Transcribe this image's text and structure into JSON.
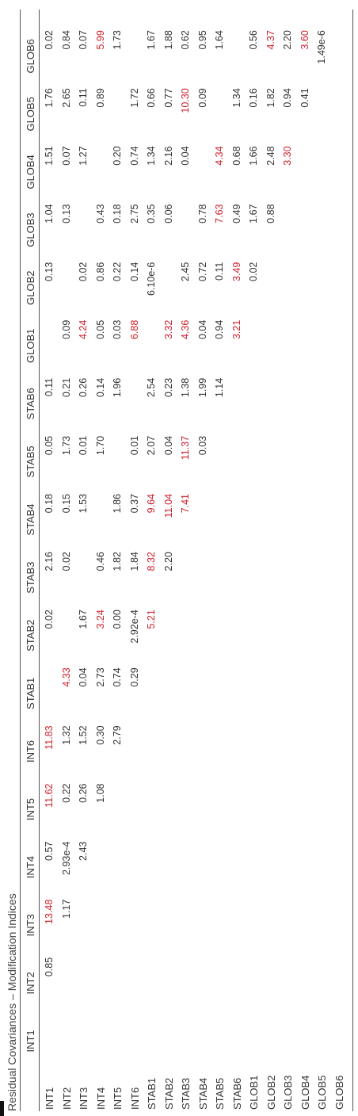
{
  "caption": "Residual Covariances – Modification Indices",
  "highlight_color": "#d0202a",
  "columns": [
    "INT1",
    "INT2",
    "INT3",
    "INT4",
    "INT5",
    "INT6",
    "STAB1",
    "STAB2",
    "STAB3",
    "STAB4",
    "STAB5",
    "STAB6",
    "GLOB1",
    "GLOB2",
    "GLOB3",
    "GLOB4",
    "GLOB5",
    "GLOB6"
  ],
  "rows": [
    {
      "label": "INT1",
      "cells": [
        {
          "v": ""
        },
        {
          "v": "0.85"
        },
        {
          "v": "13.48",
          "hi": true
        },
        {
          "v": "0.57"
        },
        {
          "v": "11.62",
          "hi": true
        },
        {
          "v": "11.83",
          "hi": true
        },
        {
          "v": ""
        },
        {
          "v": "0.02"
        },
        {
          "v": "2.16"
        },
        {
          "v": "0.18"
        },
        {
          "v": "0.05"
        },
        {
          "v": "0.11"
        },
        {
          "v": ""
        },
        {
          "v": "0.13"
        },
        {
          "v": "1.04"
        },
        {
          "v": "1.51"
        },
        {
          "v": "1.76"
        },
        {
          "v": "0.02"
        }
      ]
    },
    {
      "label": "INT2",
      "cells": [
        {
          "v": ""
        },
        {
          "v": ""
        },
        {
          "v": "1.17"
        },
        {
          "v": "2.93e-4"
        },
        {
          "v": "0.22"
        },
        {
          "v": "1.32"
        },
        {
          "v": "4.33",
          "hi": true
        },
        {
          "v": ""
        },
        {
          "v": "0.02"
        },
        {
          "v": "0.15"
        },
        {
          "v": "1.73"
        },
        {
          "v": "0.21"
        },
        {
          "v": "0.09"
        },
        {
          "v": ""
        },
        {
          "v": "0.13"
        },
        {
          "v": "0.07"
        },
        {
          "v": "2.65"
        },
        {
          "v": "0.84"
        }
      ]
    },
    {
      "label": "INT3",
      "cells": [
        {
          "v": ""
        },
        {
          "v": ""
        },
        {
          "v": ""
        },
        {
          "v": "2.43"
        },
        {
          "v": "0.26"
        },
        {
          "v": "1.52"
        },
        {
          "v": "0.04"
        },
        {
          "v": "1.67"
        },
        {
          "v": ""
        },
        {
          "v": "1.53"
        },
        {
          "v": "0.01"
        },
        {
          "v": "0.26"
        },
        {
          "v": "4.24",
          "hi": true
        },
        {
          "v": "0.02"
        },
        {
          "v": ""
        },
        {
          "v": "1.27"
        },
        {
          "v": "0.11"
        },
        {
          "v": "0.07"
        }
      ]
    },
    {
      "label": "INT4",
      "cells": [
        {
          "v": ""
        },
        {
          "v": ""
        },
        {
          "v": ""
        },
        {
          "v": ""
        },
        {
          "v": "1.08"
        },
        {
          "v": "0.30"
        },
        {
          "v": "2.73"
        },
        {
          "v": "3.24",
          "hi": true
        },
        {
          "v": "0.46"
        },
        {
          "v": ""
        },
        {
          "v": "1.70"
        },
        {
          "v": "0.14"
        },
        {
          "v": "0.05"
        },
        {
          "v": "0.86"
        },
        {
          "v": "0.43"
        },
        {
          "v": ""
        },
        {
          "v": "0.89"
        },
        {
          "v": "5.99",
          "hi": true
        }
      ]
    },
    {
      "label": "INT5",
      "cells": [
        {
          "v": ""
        },
        {
          "v": ""
        },
        {
          "v": ""
        },
        {
          "v": ""
        },
        {
          "v": ""
        },
        {
          "v": "2.79"
        },
        {
          "v": "0.74"
        },
        {
          "v": "0.00"
        },
        {
          "v": "1.82"
        },
        {
          "v": "1.86"
        },
        {
          "v": ""
        },
        {
          "v": "1.96"
        },
        {
          "v": "0.03"
        },
        {
          "v": "0.22"
        },
        {
          "v": "0.18"
        },
        {
          "v": "0.20"
        },
        {
          "v": ""
        },
        {
          "v": "1.73"
        }
      ]
    },
    {
      "label": "INT6",
      "cells": [
        {
          "v": ""
        },
        {
          "v": ""
        },
        {
          "v": ""
        },
        {
          "v": ""
        },
        {
          "v": ""
        },
        {
          "v": ""
        },
        {
          "v": "0.29"
        },
        {
          "v": "2.92e-4"
        },
        {
          "v": "1.84"
        },
        {
          "v": "0.37"
        },
        {
          "v": "0.01"
        },
        {
          "v": ""
        },
        {
          "v": "6.88",
          "hi": true
        },
        {
          "v": "0.14"
        },
        {
          "v": "2.75"
        },
        {
          "v": "0.74"
        },
        {
          "v": "1.72"
        },
        {
          "v": ""
        }
      ]
    },
    {
      "label": "STAB1",
      "cells": [
        {
          "v": ""
        },
        {
          "v": ""
        },
        {
          "v": ""
        },
        {
          "v": ""
        },
        {
          "v": ""
        },
        {
          "v": ""
        },
        {
          "v": ""
        },
        {
          "v": "5.21",
          "hi": true
        },
        {
          "v": "8.32",
          "hi": true
        },
        {
          "v": "9.64",
          "hi": true
        },
        {
          "v": "2.07"
        },
        {
          "v": "2.54"
        },
        {
          "v": ""
        },
        {
          "v": "6.10e-6"
        },
        {
          "v": "0.35"
        },
        {
          "v": "1.34"
        },
        {
          "v": "0.66"
        },
        {
          "v": "1.67"
        }
      ]
    },
    {
      "label": "STAB2",
      "cells": [
        {
          "v": ""
        },
        {
          "v": ""
        },
        {
          "v": ""
        },
        {
          "v": ""
        },
        {
          "v": ""
        },
        {
          "v": ""
        },
        {
          "v": ""
        },
        {
          "v": ""
        },
        {
          "v": "2.20"
        },
        {
          "v": "11.04",
          "hi": true
        },
        {
          "v": "0.04"
        },
        {
          "v": "0.23"
        },
        {
          "v": "3.32",
          "hi": true
        },
        {
          "v": ""
        },
        {
          "v": "0.06"
        },
        {
          "v": "2.16"
        },
        {
          "v": "0.77"
        },
        {
          "v": "1.88"
        }
      ]
    },
    {
      "label": "STAB3",
      "cells": [
        {
          "v": ""
        },
        {
          "v": ""
        },
        {
          "v": ""
        },
        {
          "v": ""
        },
        {
          "v": ""
        },
        {
          "v": ""
        },
        {
          "v": ""
        },
        {
          "v": ""
        },
        {
          "v": ""
        },
        {
          "v": "7.41",
          "hi": true
        },
        {
          "v": "11.37",
          "hi": true
        },
        {
          "v": "1.38"
        },
        {
          "v": "4.36",
          "hi": true
        },
        {
          "v": "2.45"
        },
        {
          "v": ""
        },
        {
          "v": "0.04"
        },
        {
          "v": "10.30",
          "hi": true
        },
        {
          "v": "0.62"
        }
      ]
    },
    {
      "label": "STAB4",
      "cells": [
        {
          "v": ""
        },
        {
          "v": ""
        },
        {
          "v": ""
        },
        {
          "v": ""
        },
        {
          "v": ""
        },
        {
          "v": ""
        },
        {
          "v": ""
        },
        {
          "v": ""
        },
        {
          "v": ""
        },
        {
          "v": ""
        },
        {
          "v": "0.03"
        },
        {
          "v": "1.99"
        },
        {
          "v": "0.04"
        },
        {
          "v": "0.72"
        },
        {
          "v": "0.78"
        },
        {
          "v": ""
        },
        {
          "v": "0.09"
        },
        {
          "v": "0.95"
        }
      ]
    },
    {
      "label": "STAB5",
      "cells": [
        {
          "v": ""
        },
        {
          "v": ""
        },
        {
          "v": ""
        },
        {
          "v": ""
        },
        {
          "v": ""
        },
        {
          "v": ""
        },
        {
          "v": ""
        },
        {
          "v": ""
        },
        {
          "v": ""
        },
        {
          "v": ""
        },
        {
          "v": ""
        },
        {
          "v": "1.14"
        },
        {
          "v": "0.94"
        },
        {
          "v": "0.11"
        },
        {
          "v": "7.63",
          "hi": true
        },
        {
          "v": "4.34",
          "hi": true
        },
        {
          "v": ""
        },
        {
          "v": "1.64"
        }
      ]
    },
    {
      "label": "STAB6",
      "cells": [
        {
          "v": ""
        },
        {
          "v": ""
        },
        {
          "v": ""
        },
        {
          "v": ""
        },
        {
          "v": ""
        },
        {
          "v": ""
        },
        {
          "v": ""
        },
        {
          "v": ""
        },
        {
          "v": ""
        },
        {
          "v": ""
        },
        {
          "v": ""
        },
        {
          "v": ""
        },
        {
          "v": "3.21",
          "hi": true
        },
        {
          "v": "3.49",
          "hi": true
        },
        {
          "v": "0.49"
        },
        {
          "v": "0.68"
        },
        {
          "v": "1.34"
        },
        {
          "v": ""
        }
      ]
    },
    {
      "label": "GLOB1",
      "cells": [
        {
          "v": ""
        },
        {
          "v": ""
        },
        {
          "v": ""
        },
        {
          "v": ""
        },
        {
          "v": ""
        },
        {
          "v": ""
        },
        {
          "v": ""
        },
        {
          "v": ""
        },
        {
          "v": ""
        },
        {
          "v": ""
        },
        {
          "v": ""
        },
        {
          "v": ""
        },
        {
          "v": ""
        },
        {
          "v": "0.02"
        },
        {
          "v": "1.67"
        },
        {
          "v": "1.66"
        },
        {
          "v": "0.16"
        },
        {
          "v": "0.56"
        }
      ]
    },
    {
      "label": "GLOB2",
      "cells": [
        {
          "v": ""
        },
        {
          "v": ""
        },
        {
          "v": ""
        },
        {
          "v": ""
        },
        {
          "v": ""
        },
        {
          "v": ""
        },
        {
          "v": ""
        },
        {
          "v": ""
        },
        {
          "v": ""
        },
        {
          "v": ""
        },
        {
          "v": ""
        },
        {
          "v": ""
        },
        {
          "v": ""
        },
        {
          "v": ""
        },
        {
          "v": "0.88"
        },
        {
          "v": "2.48"
        },
        {
          "v": "1.82"
        },
        {
          "v": "4.37",
          "hi": true
        }
      ]
    },
    {
      "label": "GLOB3",
      "cells": [
        {
          "v": ""
        },
        {
          "v": ""
        },
        {
          "v": ""
        },
        {
          "v": ""
        },
        {
          "v": ""
        },
        {
          "v": ""
        },
        {
          "v": ""
        },
        {
          "v": ""
        },
        {
          "v": ""
        },
        {
          "v": ""
        },
        {
          "v": ""
        },
        {
          "v": ""
        },
        {
          "v": ""
        },
        {
          "v": ""
        },
        {
          "v": ""
        },
        {
          "v": "3.30",
          "hi": true
        },
        {
          "v": "0.94"
        },
        {
          "v": "2.20"
        }
      ]
    },
    {
      "label": "GLOB4",
      "cells": [
        {
          "v": ""
        },
        {
          "v": ""
        },
        {
          "v": ""
        },
        {
          "v": ""
        },
        {
          "v": ""
        },
        {
          "v": ""
        },
        {
          "v": ""
        },
        {
          "v": ""
        },
        {
          "v": ""
        },
        {
          "v": ""
        },
        {
          "v": ""
        },
        {
          "v": ""
        },
        {
          "v": ""
        },
        {
          "v": ""
        },
        {
          "v": ""
        },
        {
          "v": ""
        },
        {
          "v": "0.41"
        },
        {
          "v": "3.60",
          "hi": true
        }
      ]
    },
    {
      "label": "GLOB5",
      "cells": [
        {
          "v": ""
        },
        {
          "v": ""
        },
        {
          "v": ""
        },
        {
          "v": ""
        },
        {
          "v": ""
        },
        {
          "v": ""
        },
        {
          "v": ""
        },
        {
          "v": ""
        },
        {
          "v": ""
        },
        {
          "v": ""
        },
        {
          "v": ""
        },
        {
          "v": ""
        },
        {
          "v": ""
        },
        {
          "v": ""
        },
        {
          "v": ""
        },
        {
          "v": ""
        },
        {
          "v": ""
        },
        {
          "v": "1.49e-6"
        }
      ]
    },
    {
      "label": "GLOB6",
      "cells": [
        {
          "v": ""
        },
        {
          "v": ""
        },
        {
          "v": ""
        },
        {
          "v": ""
        },
        {
          "v": ""
        },
        {
          "v": ""
        },
        {
          "v": ""
        },
        {
          "v": ""
        },
        {
          "v": ""
        },
        {
          "v": ""
        },
        {
          "v": ""
        },
        {
          "v": ""
        },
        {
          "v": ""
        },
        {
          "v": ""
        },
        {
          "v": ""
        },
        {
          "v": ""
        },
        {
          "v": ""
        },
        {
          "v": ""
        }
      ]
    }
  ]
}
